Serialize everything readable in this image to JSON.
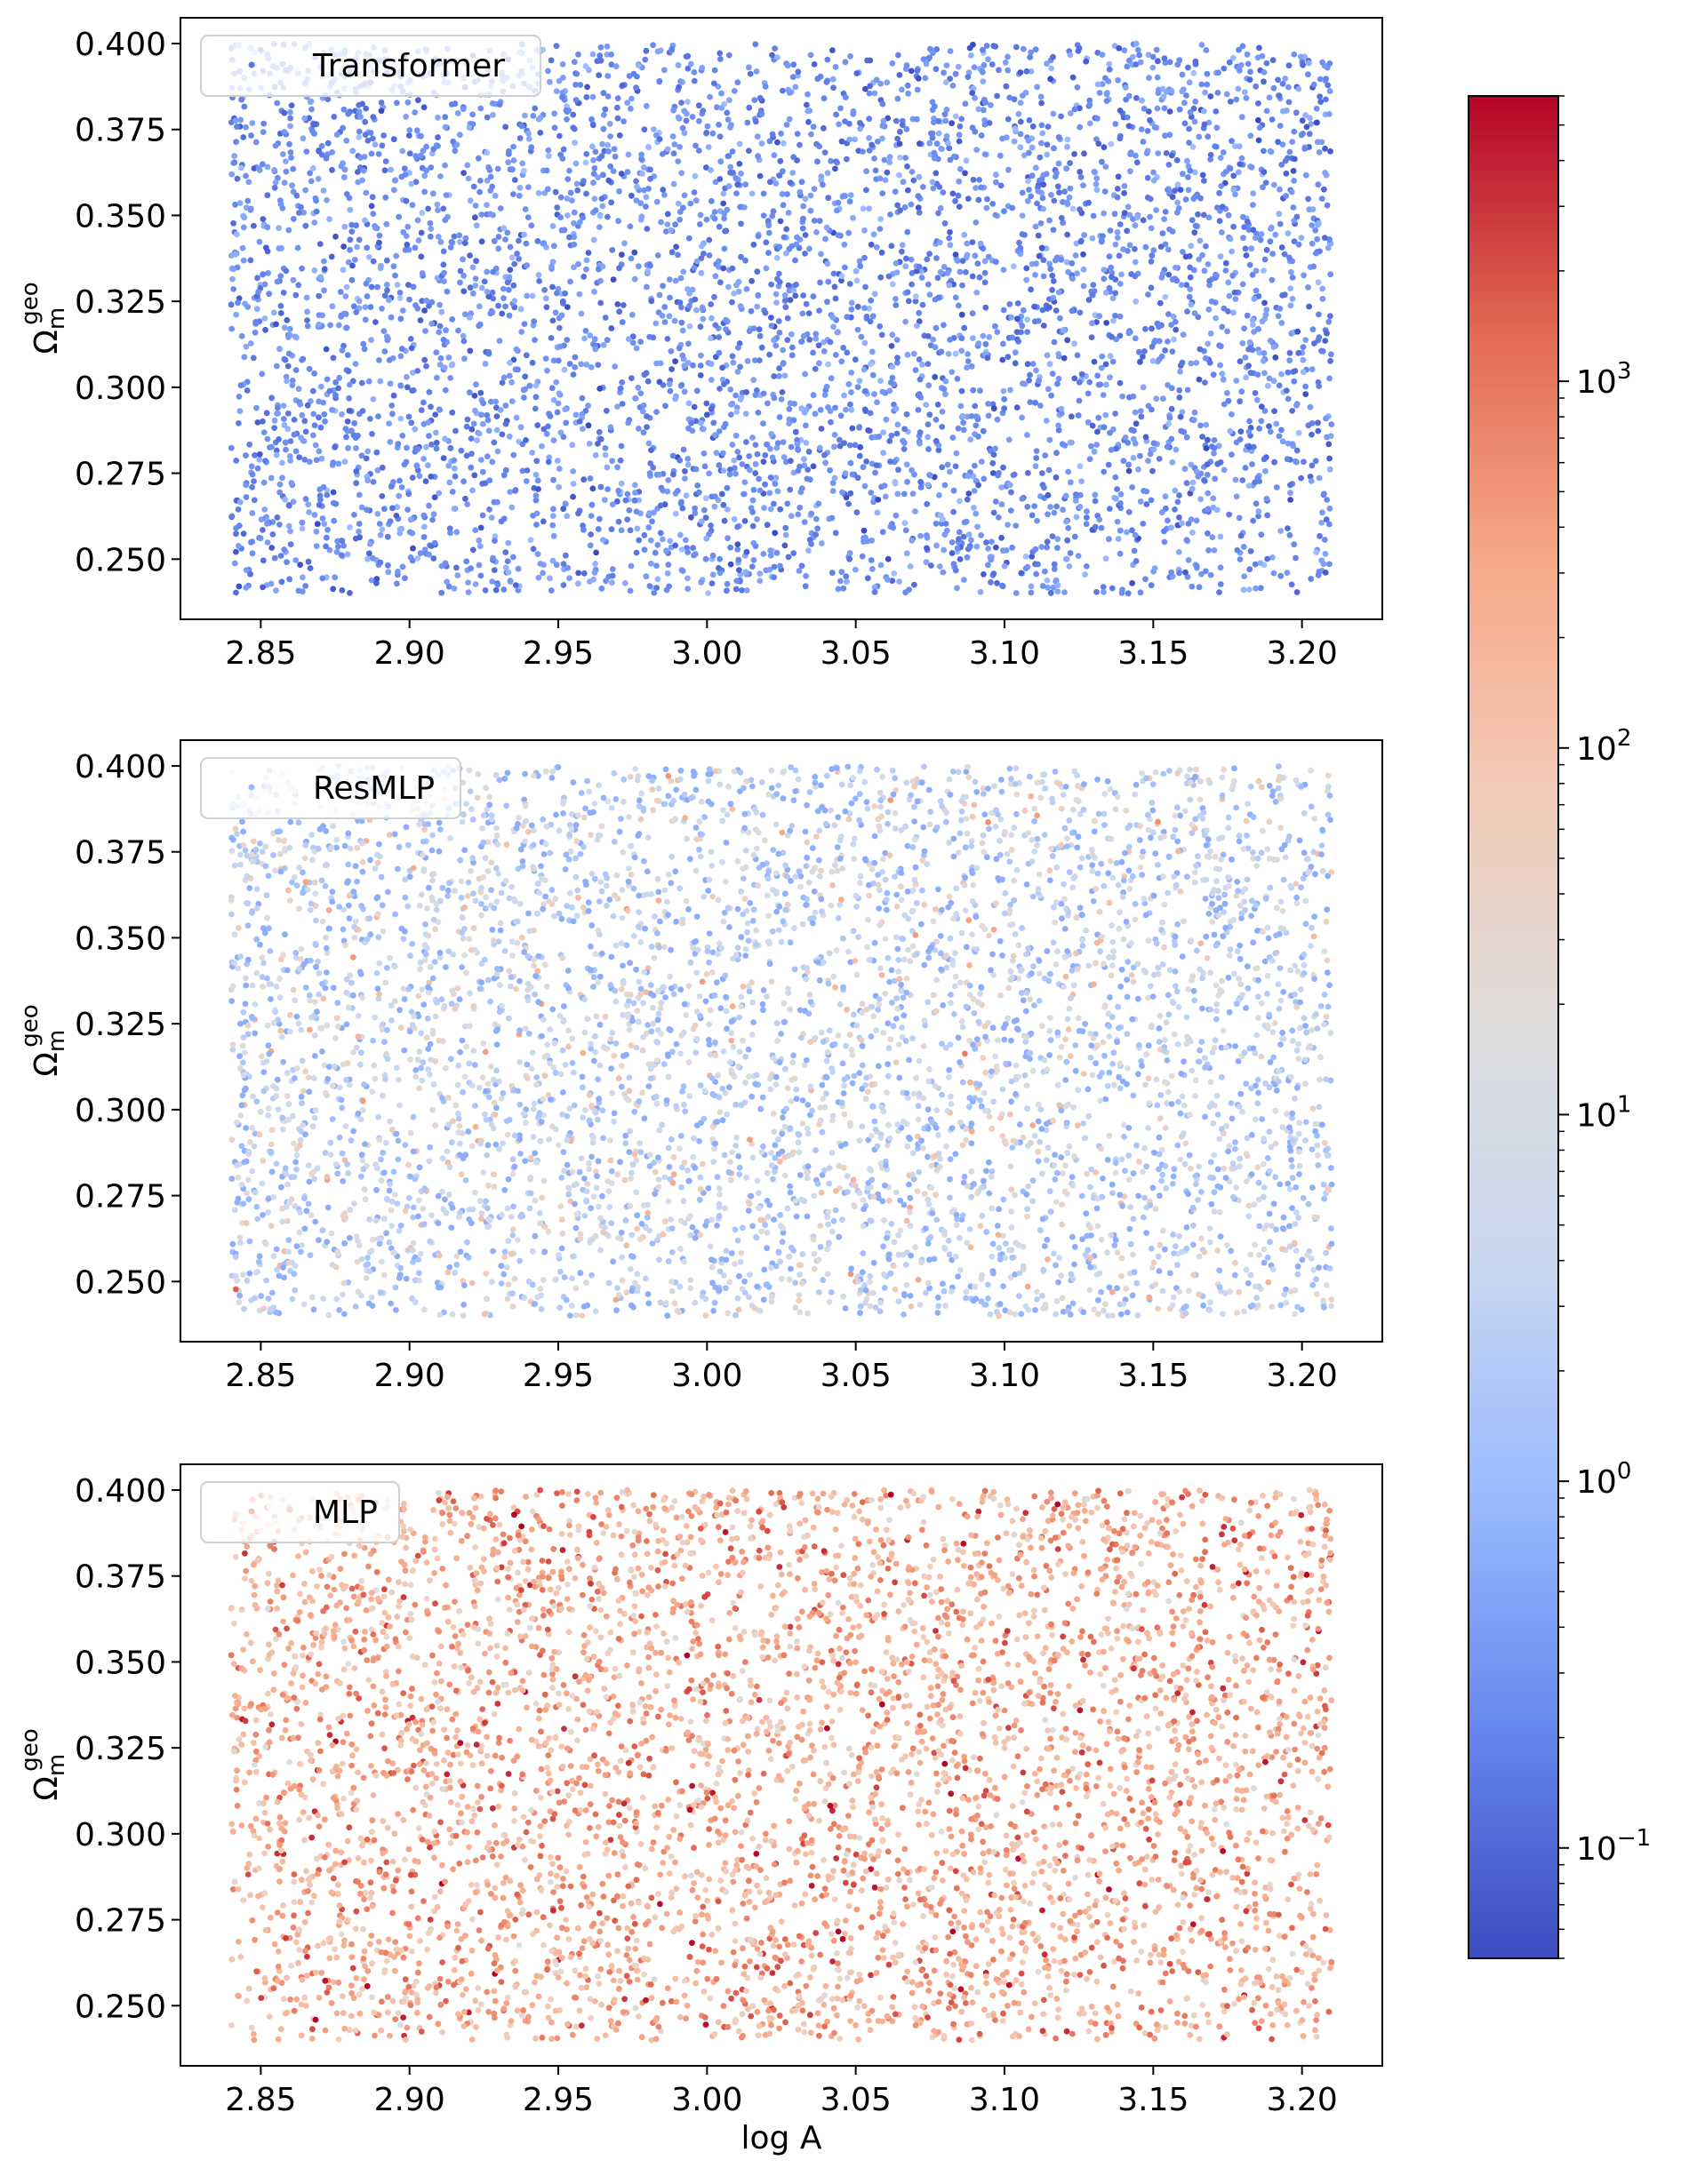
{
  "figure": {
    "xlabel": "log A",
    "ylabel_base": "Ω",
    "ylabel_sup": "geo",
    "ylabel_sub": "m"
  },
  "colorbar": {
    "scale": "log",
    "range": [
      0.05,
      6000
    ],
    "colormap": "coolwarm",
    "colormap_stops": [
      "#3b4cc0",
      "#6788ee",
      "#9abbff",
      "#c9d7f0",
      "#dddcdc",
      "#f2cbb7",
      "#f7a889",
      "#e26952",
      "#b40426"
    ],
    "tick_values": [
      0.1,
      1,
      10,
      100,
      1000
    ],
    "tick_labels": [
      {
        "base": "10",
        "exp": "−1"
      },
      {
        "base": "10",
        "exp": "0"
      },
      {
        "base": "10",
        "exp": "1"
      },
      {
        "base": "10",
        "exp": "2"
      },
      {
        "base": "10",
        "exp": "3"
      }
    ]
  },
  "chart_data": [
    {
      "type": "scatter",
      "legend": "Transformer",
      "legend_placement": "upper-left",
      "xlim": [
        2.823,
        3.227
      ],
      "ylim": [
        0.2325,
        0.4075
      ],
      "xticks": [
        "2.85",
        "2.90",
        "2.95",
        "3.00",
        "3.05",
        "3.10",
        "3.15",
        "3.20"
      ],
      "yticks": [
        "0.250",
        "0.275",
        "0.300",
        "0.325",
        "0.350",
        "0.375",
        "0.400"
      ],
      "xlabel": "",
      "x_range_sampled": [
        2.84,
        3.21
      ],
      "y_range_sampled": [
        0.24,
        0.4
      ],
      "point_count_approx": 5000,
      "color_value_log10_range": [
        -1.3,
        0.1
      ],
      "color_value_log10_mean": -0.6
    },
    {
      "type": "scatter",
      "legend": "ResMLP",
      "legend_placement": "upper-left",
      "xlim": [
        2.823,
        3.227
      ],
      "ylim": [
        0.2325,
        0.4075
      ],
      "xticks": [
        "2.85",
        "2.90",
        "2.95",
        "3.00",
        "3.05",
        "3.10",
        "3.15",
        "3.20"
      ],
      "yticks": [
        "0.250",
        "0.275",
        "0.300",
        "0.325",
        "0.350",
        "0.375",
        "0.400"
      ],
      "xlabel": "",
      "x_range_sampled": [
        2.84,
        3.21
      ],
      "y_range_sampled": [
        0.24,
        0.4
      ],
      "point_count_approx": 5000,
      "color_value_log10_range": [
        -0.2,
        3.7
      ],
      "color_value_log10_mean": 0.5
    },
    {
      "type": "scatter",
      "legend": "MLP",
      "legend_placement": "upper-left",
      "xlim": [
        2.823,
        3.227
      ],
      "ylim": [
        0.2325,
        0.4075
      ],
      "xticks": [
        "2.85",
        "2.90",
        "2.95",
        "3.00",
        "3.05",
        "3.10",
        "3.15",
        "3.20"
      ],
      "yticks": [
        "0.250",
        "0.275",
        "0.300",
        "0.325",
        "0.350",
        "0.375",
        "0.400"
      ],
      "xlabel": "log A",
      "x_range_sampled": [
        2.84,
        3.21
      ],
      "y_range_sampled": [
        0.24,
        0.4
      ],
      "point_count_approx": 5000,
      "color_value_log10_range": [
        1.2,
        3.8
      ],
      "color_value_log10_mean": 2.4
    }
  ]
}
